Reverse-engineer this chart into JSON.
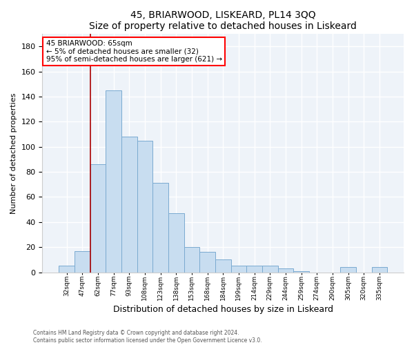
{
  "title": "45, BRIARWOOD, LISKEARD, PL14 3QQ",
  "subtitle": "Size of property relative to detached houses in Liskeard",
  "xlabel": "Distribution of detached houses by size in Liskeard",
  "ylabel": "Number of detached properties",
  "bar_color": "#c8ddf0",
  "bar_edge_color": "#7aaad0",
  "categories": [
    "32sqm",
    "47sqm",
    "62sqm",
    "77sqm",
    "93sqm",
    "108sqm",
    "123sqm",
    "138sqm",
    "153sqm",
    "168sqm",
    "184sqm",
    "199sqm",
    "214sqm",
    "229sqm",
    "244sqm",
    "259sqm",
    "274sqm",
    "290sqm",
    "305sqm",
    "320sqm",
    "335sqm"
  ],
  "values": [
    5,
    17,
    86,
    145,
    108,
    105,
    71,
    47,
    20,
    16,
    10,
    5,
    5,
    5,
    3,
    1,
    0,
    0,
    4,
    0,
    4
  ],
  "ylim": [
    0,
    190
  ],
  "yticks": [
    0,
    20,
    40,
    60,
    80,
    100,
    120,
    140,
    160,
    180
  ],
  "annotation_text": "45 BRIARWOOD: 65sqm\n← 5% of detached houses are smaller (32)\n95% of semi-detached houses are larger (621) →",
  "vline_color": "#aa0000",
  "vline_position": 1.5,
  "footnote1": "Contains HM Land Registry data © Crown copyright and database right 2024.",
  "footnote2": "Contains public sector information licensed under the Open Government Licence v3.0.",
  "plot_bg_color": "#eef3f9",
  "fig_bg_color": "#ffffff",
  "grid_color": "#ffffff"
}
